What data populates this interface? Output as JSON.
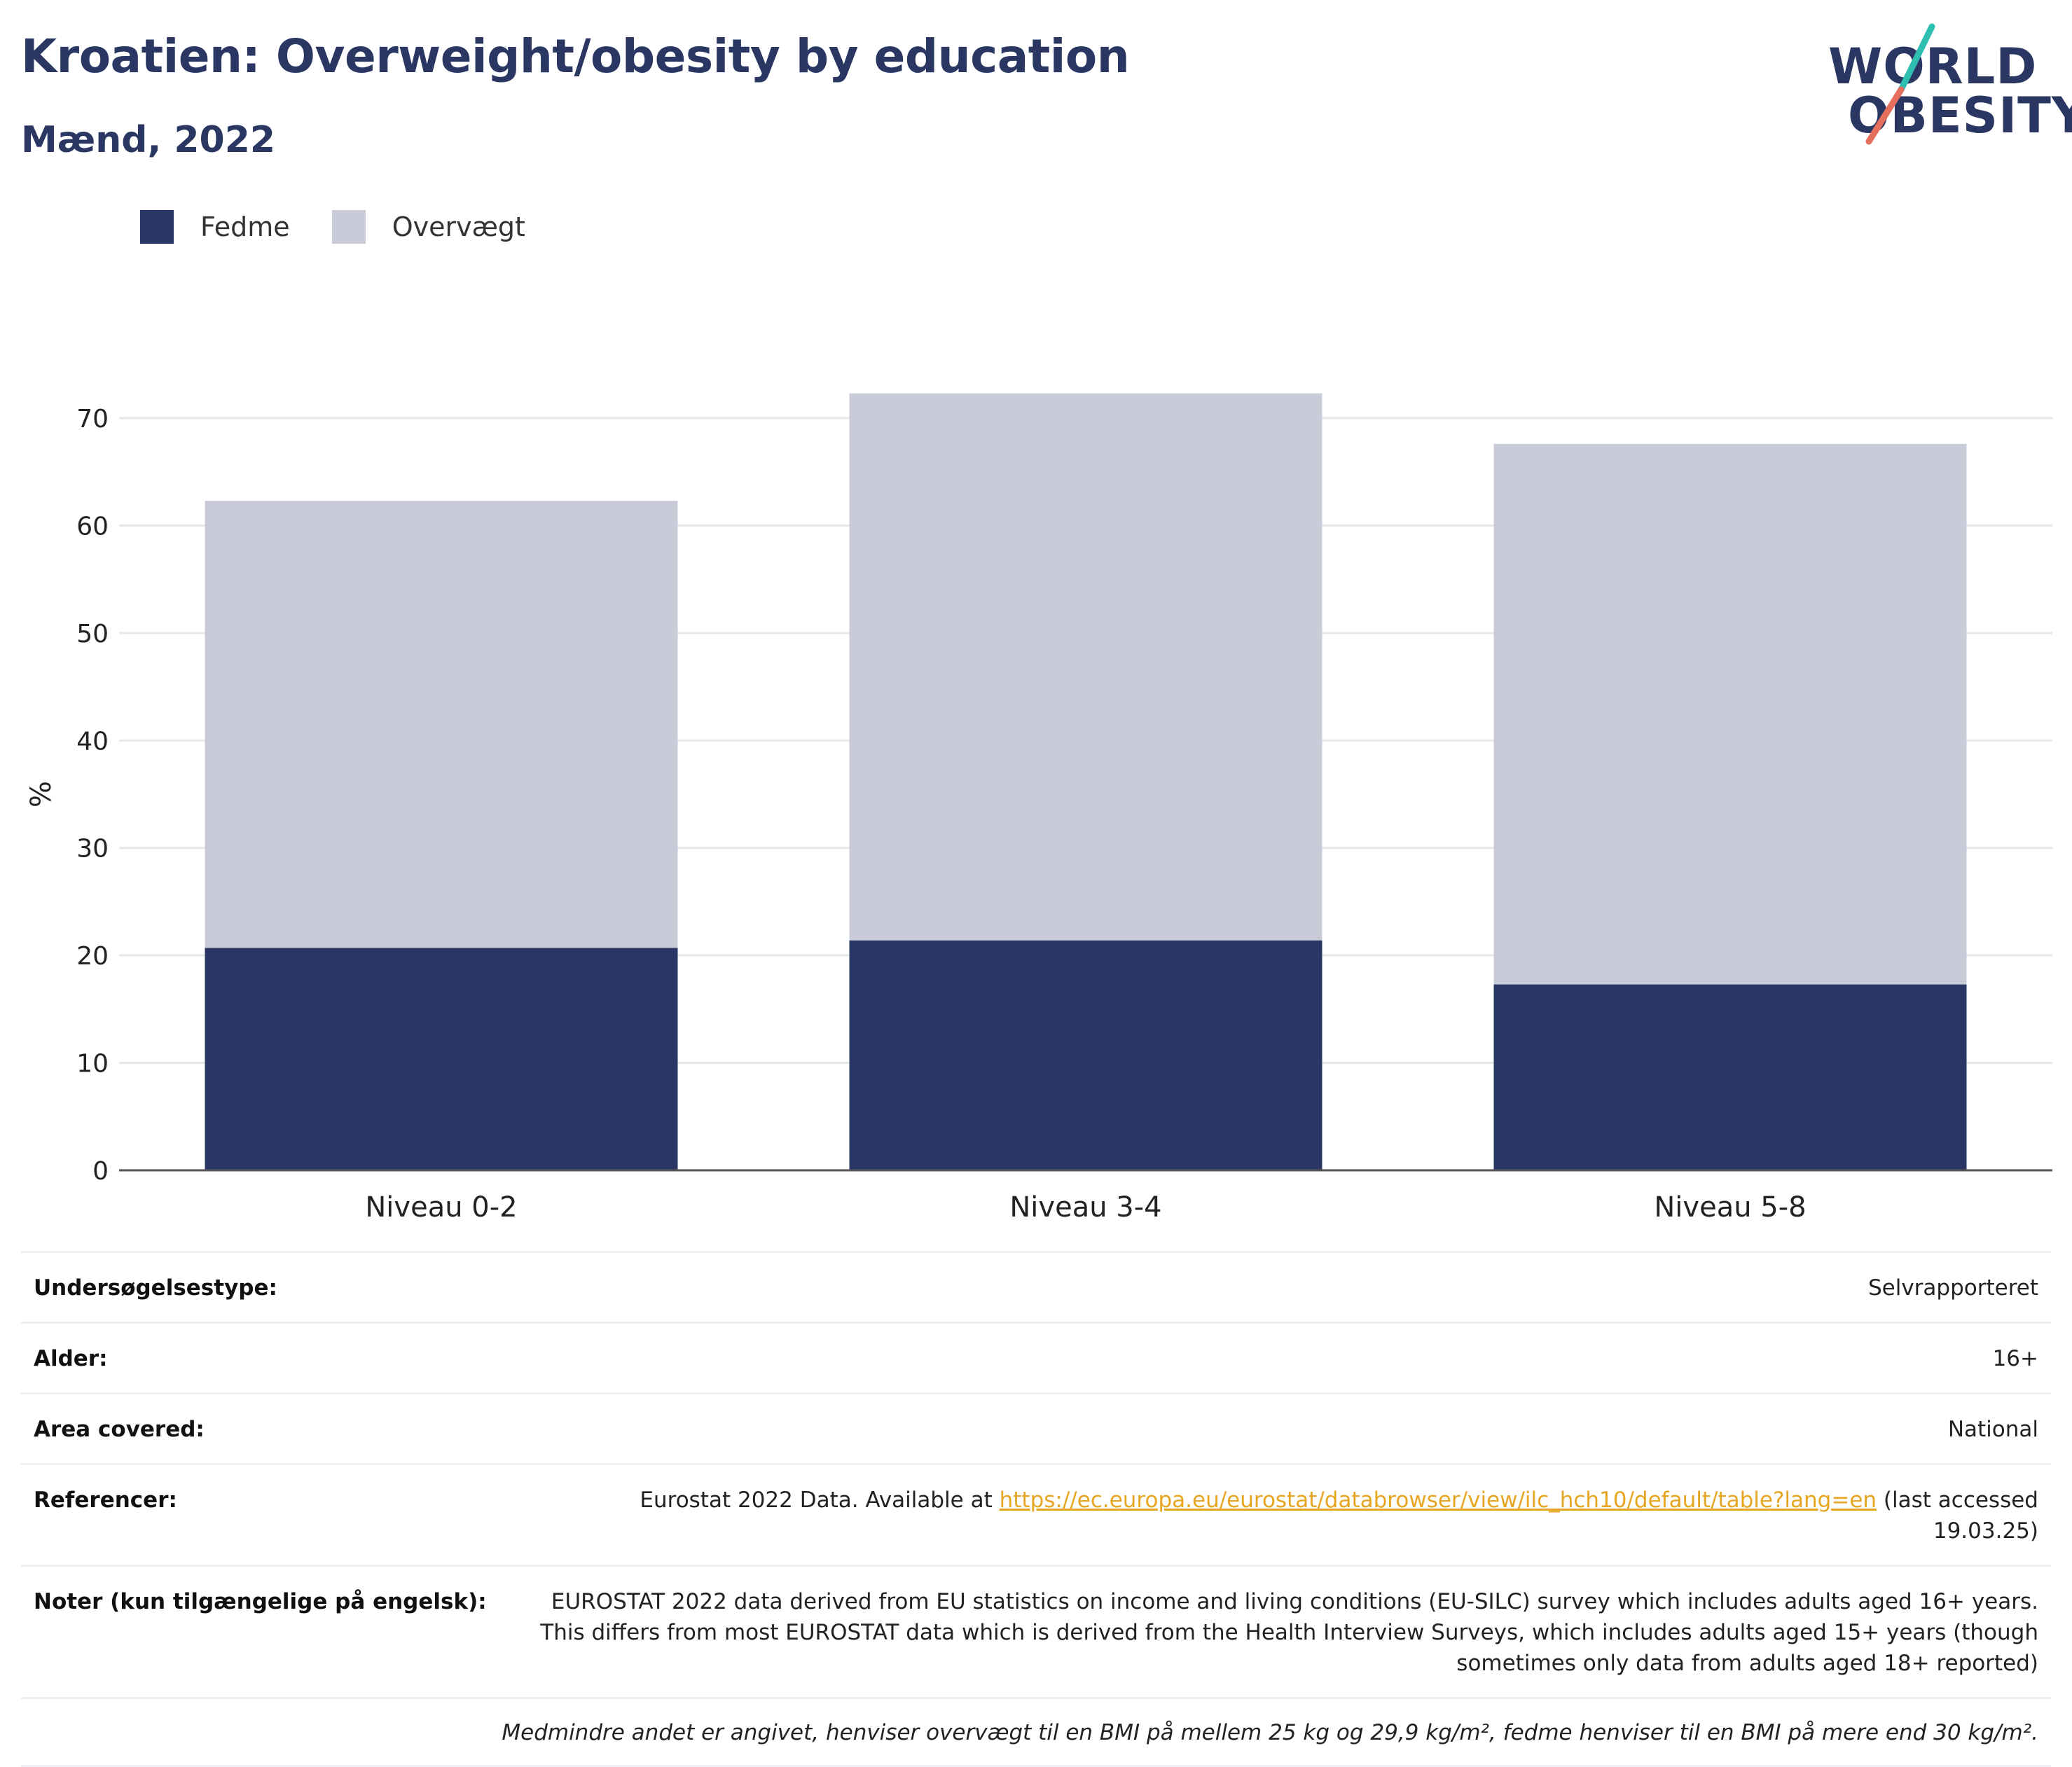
{
  "header": {
    "title": "Kroatien: Overweight/obesity by education",
    "subtitle": "Mænd, 2022",
    "logo_line1": "WORLD",
    "logo_line2": "OBESITY"
  },
  "colors": {
    "title": "#2b3763",
    "fedme": "#2a3664",
    "overvaegt": "#c9ccd8",
    "logo_slash_top": "#2fbfb0",
    "logo_slash_bottom": "#e46f5c"
  },
  "chart_data": {
    "type": "bar",
    "stacked": true,
    "categories": [
      "Niveau 0-2",
      "Niveau 3-4",
      "Niveau 5-8"
    ],
    "series": [
      {
        "name": "Fedme",
        "color": "#2a3664",
        "values": [
          20.7,
          21.4,
          17.3
        ]
      },
      {
        "name": "Overvægt",
        "color": "#c9ccd8",
        "values": [
          41.6,
          50.9,
          50.3
        ]
      }
    ],
    "totals": [
      62.3,
      72.3,
      67.6
    ],
    "ylabel": "%",
    "ylim": [
      0,
      75
    ],
    "yticks": [
      0,
      10,
      20,
      30,
      40,
      50,
      60,
      70
    ],
    "grid": true,
    "legend": "top-left"
  },
  "info": {
    "rows": [
      {
        "label": "Undersøgelsestype:",
        "value": "Selvrapporteret"
      },
      {
        "label": "Alder:",
        "value": "16+"
      },
      {
        "label": "Area covered:",
        "value": "National"
      }
    ],
    "references": {
      "label": "Referencer:",
      "prefix": "Eurostat 2022 Data. Available at ",
      "link": "https://ec.europa.eu/eurostat/databrowser/view/ilc_hch10/default/table?lang=en",
      "suffix": " (last accessed 19.03.25)"
    },
    "notes": {
      "label": "Noter (kun tilgængelige på engelsk):",
      "value": "EUROSTAT 2022 data derived from EU statistics on income and living conditions (EU-SILC) survey which includes adults aged 16+ years. This differs from most EUROSTAT data which is derived from the Health Interview Surveys, which includes adults aged 15+ years (though sometimes only data from adults aged 18+ reported)"
    },
    "footnote": "Medmindre andet er angivet, henviser overvægt til en BMI på mellem 25 kg og 29,9 kg/m², fedme henviser til en BMI på mere end 30 kg/m²."
  }
}
